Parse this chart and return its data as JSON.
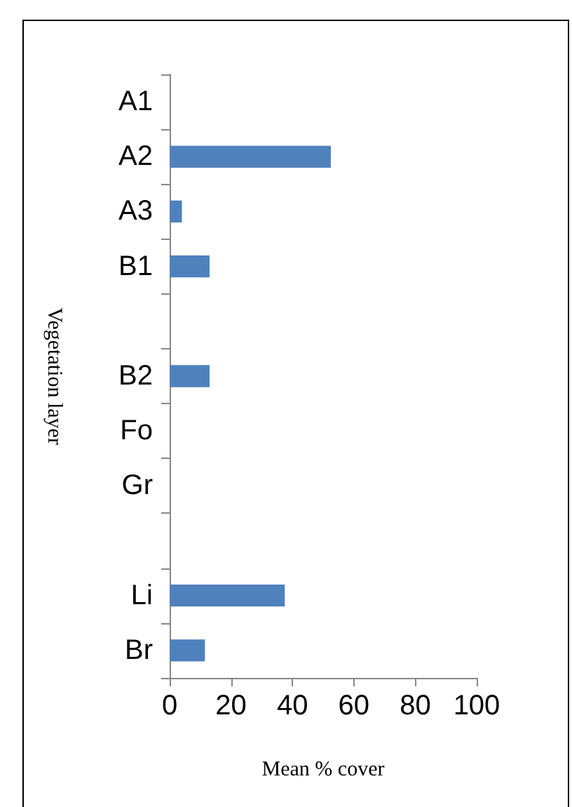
{
  "chart_data": {
    "type": "bar",
    "orientation": "horizontal",
    "xlabel": "Mean % cover",
    "ylabel": "Vegetation layer",
    "categories": [
      "A1",
      "A2",
      "A3",
      "B1",
      null,
      "B2",
      "Fo",
      "Gr",
      null,
      "Li",
      "Br"
    ],
    "series": [
      {
        "color": "#4f81bd",
        "values": [
          0,
          52.5,
          4,
          13,
          0,
          13,
          0,
          0,
          0,
          37.5,
          11.5
        ]
      }
    ],
    "xlim": [
      0,
      100
    ],
    "xticks": [
      0,
      20,
      40,
      60,
      80,
      100
    ]
  }
}
